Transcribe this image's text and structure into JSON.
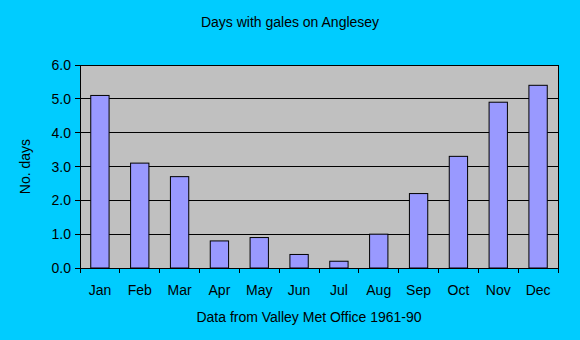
{
  "chart_data": {
    "type": "bar",
    "title": "Days with gales on Anglesey",
    "x_label": "Data from Valley Met Office 1961-90",
    "y_label": "No. days",
    "categories": [
      "Jan",
      "Feb",
      "Mar",
      "Apr",
      "May",
      "Jun",
      "Jul",
      "Aug",
      "Sep",
      "Oct",
      "Nov",
      "Dec"
    ],
    "values": [
      5.1,
      3.1,
      2.7,
      0.8,
      0.9,
      0.4,
      0.2,
      1.0,
      2.2,
      3.3,
      4.9,
      5.4
    ],
    "color": "#9999ff",
    "ylim": [
      0,
      6
    ],
    "yticks": [
      {
        "value": 0,
        "label": "0.0"
      },
      {
        "value": 1,
        "label": "1.0"
      },
      {
        "value": 2,
        "label": "2.0"
      },
      {
        "value": 3,
        "label": "3.0"
      },
      {
        "value": 4,
        "label": "4.0"
      },
      {
        "value": 5,
        "label": "5.0"
      },
      {
        "value": 6,
        "label": "6.0"
      }
    ],
    "grid": true
  }
}
